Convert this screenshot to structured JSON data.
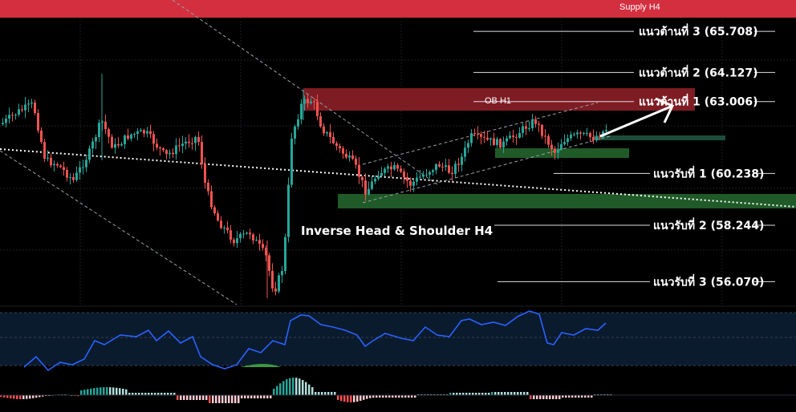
{
  "chart_data": {
    "type": "candlestick",
    "title": "",
    "colors": {
      "up": "#26a69a",
      "down": "#ef5350",
      "supply": "#d32f3f",
      "ob": "#7e1c24",
      "demand": "#1f5a28",
      "rsi": "#2962ff"
    },
    "grid": true,
    "y_range": [
      54.2,
      66.3
    ],
    "zones": {
      "supply": {
        "label": "Supply  H4"
      },
      "ob": {
        "label": "OB H1"
      }
    },
    "levels": [
      {
        "label": "แนวต้านที่ 3 (65.708)",
        "value": 65.708
      },
      {
        "label": "แนวต้านที่ 2 (64.127)",
        "value": 64.127
      },
      {
        "label": "แนวต้านที่ 1 (63.006)",
        "value": 63.006
      },
      {
        "label": "แนวรับที่ 1 (60.238)",
        "value": 60.238
      },
      {
        "label": "แนวรับที่ 2 (58.244)",
        "value": 58.244
      },
      {
        "label": "แนวรับที่ 3 (56.070)",
        "value": 56.07
      }
    ],
    "pattern_label": "Inverse Head & Shoulder H4",
    "indicators": [
      "RSI",
      "MACD histogram"
    ]
  }
}
